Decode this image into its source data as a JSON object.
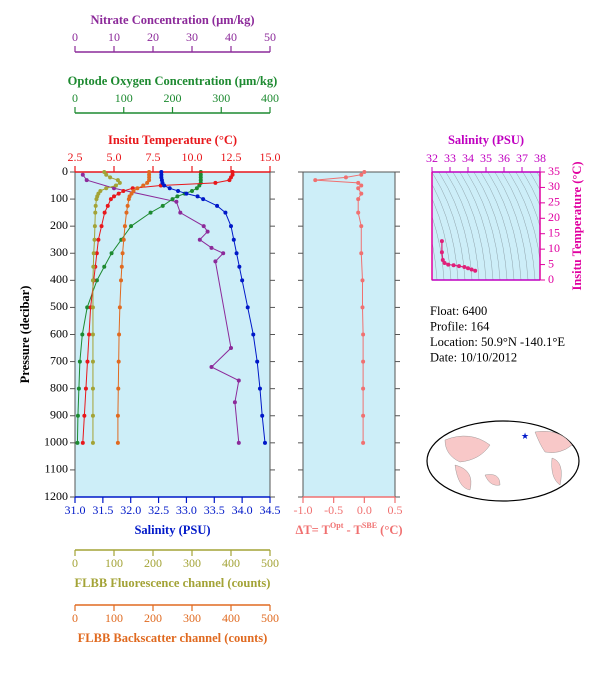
{
  "chart_data": [
    {
      "type": "profile",
      "ylabel": "Pressure (decibar)",
      "ylim": [
        0,
        1200
      ],
      "yticks": [
        0,
        100,
        200,
        300,
        400,
        500,
        600,
        700,
        800,
        900,
        1000,
        1100,
        1200
      ],
      "y_inverted": true,
      "background": "#cdeef8",
      "x_axes": [
        {
          "label": "Nitrate Concentration (µm/kg)",
          "color": "#8c2a9a",
          "side": "top",
          "xlim": [
            0,
            50
          ],
          "xticks": [
            0,
            10,
            20,
            30,
            40,
            50
          ],
          "pressure": [
            10,
            30,
            60,
            110,
            150,
            200,
            220,
            250,
            280,
            300,
            330,
            650,
            720,
            770,
            850,
            1000
          ],
          "values": [
            2,
            3,
            10,
            26,
            27,
            33,
            34,
            32,
            35,
            38,
            36,
            40,
            35,
            42,
            41,
            42
          ]
        },
        {
          "label": "Optode Oxygen Concentration (µm/kg)",
          "color": "#1d8a30",
          "side": "top",
          "xlim": [
            0,
            400
          ],
          "xticks": [
            0,
            100,
            200,
            300,
            400
          ],
          "pressure": [
            0,
            10,
            20,
            30,
            40,
            50,
            60,
            70,
            80,
            90,
            100,
            125,
            150,
            200,
            250,
            300,
            350,
            400,
            500,
            600,
            700,
            800,
            900,
            1000
          ],
          "values": [
            258,
            258,
            258,
            258,
            258,
            255,
            250,
            240,
            225,
            210,
            200,
            180,
            155,
            115,
            95,
            75,
            60,
            45,
            25,
            15,
            10,
            8,
            6,
            5
          ]
        },
        {
          "label": "Insitu Temperature (°C)",
          "color": "#e8171b",
          "side": "top",
          "xlim": [
            2.5,
            15
          ],
          "xticks": [
            2.5,
            {
              "value": 5,
              "label": "5.0"
            },
            7.5,
            {
              "value": 10,
              "label": "10.0"
            },
            12.5,
            {
              "value": 15,
              "label": "15.0"
            }
          ],
          "pressure": [
            0,
            10,
            20,
            30,
            40,
            50,
            60,
            70,
            80,
            90,
            100,
            125,
            150,
            200,
            250,
            300,
            350,
            400,
            500,
            600,
            700,
            800,
            900,
            1000
          ],
          "values": [
            12.6,
            12.6,
            12.5,
            12.4,
            11.5,
            8.0,
            6.2,
            5.6,
            5.3,
            5.0,
            4.8,
            4.6,
            4.4,
            4.2,
            4.0,
            3.9,
            3.8,
            3.7,
            3.5,
            3.4,
            3.3,
            3.2,
            3.1,
            3.0
          ]
        },
        {
          "label": "Salinity (PSU)",
          "color": "#0018c8",
          "side": "bottom",
          "xlim": [
            31,
            34.5
          ],
          "xticks": [
            {
              "value": 31,
              "label": "31.0"
            },
            31.5,
            {
              "value": 32,
              "label": "32.0"
            },
            32.5,
            {
              "value": 33,
              "label": "33.0"
            },
            33.5,
            {
              "value": 34,
              "label": "34.0"
            },
            34.5
          ],
          "pressure": [
            0,
            10,
            20,
            30,
            40,
            50,
            60,
            70,
            80,
            90,
            100,
            125,
            150,
            200,
            250,
            300,
            350,
            400,
            500,
            600,
            700,
            800,
            900,
            1000
          ],
          "values": [
            32.55,
            32.55,
            32.55,
            32.56,
            32.57,
            32.6,
            32.7,
            32.85,
            33.0,
            33.2,
            33.3,
            33.55,
            33.7,
            33.8,
            33.85,
            33.9,
            33.95,
            34.0,
            34.1,
            34.2,
            34.27,
            34.32,
            34.36,
            34.41
          ]
        },
        {
          "label": "FLBB Fluorescence channel (counts)",
          "color": "#a3a336",
          "side": "bottom",
          "xlim": [
            0,
            500
          ],
          "xticks": [
            0,
            100,
            200,
            300,
            400,
            500
          ],
          "pressure": [
            0,
            10,
            20,
            30,
            40,
            50,
            60,
            70,
            80,
            90,
            100,
            125,
            150,
            200,
            250,
            300,
            350,
            400,
            500,
            600,
            700,
            800,
            900,
            1000
          ],
          "values": [
            75,
            80,
            90,
            110,
            115,
            105,
            80,
            65,
            60,
            57,
            55,
            53,
            52,
            51,
            50,
            48,
            47,
            46,
            46,
            46,
            46,
            46,
            46,
            46
          ]
        },
        {
          "label": "FLBB Backscatter channel (counts)",
          "color": "#e06a20",
          "side": "bottom",
          "xlim": [
            0,
            500
          ],
          "xticks": [
            0,
            100,
            200,
            300,
            400,
            500
          ],
          "pressure": [
            0,
            10,
            20,
            30,
            40,
            50,
            60,
            70,
            80,
            90,
            100,
            125,
            150,
            200,
            250,
            300,
            350,
            400,
            500,
            600,
            700,
            800,
            900,
            1000
          ],
          "values": [
            190,
            190,
            190,
            190,
            185,
            175,
            160,
            150,
            145,
            140,
            138,
            135,
            132,
            128,
            125,
            122,
            120,
            118,
            115,
            113,
            112,
            111,
            110,
            110
          ]
        }
      ]
    },
    {
      "type": "profile",
      "ylim": [
        0,
        1200
      ],
      "yticks": [
        0,
        100,
        200,
        300,
        400,
        500,
        600,
        700,
        800,
        900,
        1000,
        1100,
        1200
      ],
      "y_inverted": true,
      "background": "#cdeef8",
      "x_axes": [
        {
          "label_parts": [
            "ΔT= T",
            "Opt",
            " - T",
            "SBE",
            " (°C)"
          ],
          "color": "#f07070",
          "side": "bottom",
          "xlim": [
            -1,
            0.5
          ],
          "xticks": [
            {
              "value": -1,
              "label": "-1.0"
            },
            -0.5,
            {
              "value": 0,
              "label": "0.0"
            },
            0.5
          ],
          "pressure": [
            0,
            10,
            20,
            30,
            40,
            50,
            60,
            80,
            100,
            150,
            200,
            300,
            400,
            500,
            600,
            700,
            800,
            900,
            1000
          ],
          "values": [
            0.0,
            -0.05,
            -0.3,
            -0.8,
            -0.1,
            -0.05,
            -0.1,
            -0.05,
            -0.1,
            -0.1,
            -0.05,
            -0.05,
            -0.03,
            -0.03,
            -0.02,
            -0.02,
            -0.02,
            -0.02,
            -0.02
          ]
        }
      ]
    },
    {
      "type": "ts",
      "xlabel": "Salinity (PSU)",
      "ylabel": "Insitu Temperature (°C)",
      "xcolor": "#c000c0",
      "ycolor": "#e000a0",
      "color": "#e0207a",
      "background": "#cdeef8",
      "xlim": [
        32,
        38
      ],
      "xticks": [
        32,
        33,
        34,
        35,
        36,
        37,
        38
      ],
      "ylim": [
        0,
        35
      ],
      "yticks": [
        0,
        5,
        10,
        15,
        20,
        25,
        30,
        35
      ],
      "x": [
        32.55,
        32.55,
        32.6,
        32.7,
        32.9,
        33.2,
        33.5,
        33.8,
        34.0,
        34.2,
        34.4
      ],
      "y": [
        12.6,
        9,
        6.5,
        5.5,
        5.0,
        4.8,
        4.5,
        4.2,
        3.8,
        3.4,
        3.0
      ]
    }
  ],
  "info": [
    "Float:  6400",
    "Profile:  164",
    "Location:  50.9°N  -140.1°E",
    "Date:  10/10/2012"
  ]
}
